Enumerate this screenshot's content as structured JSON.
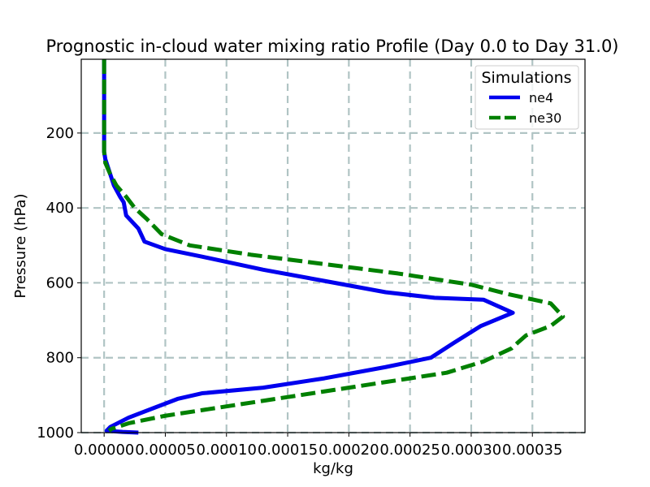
{
  "chart_data": {
    "type": "line",
    "title": "Prognostic in-cloud water mixing ratio Profile (Day 0.0 to Day 31.0)",
    "xlabel": "kg/kg",
    "ylabel": "Pressure (hPa)",
    "xlim": [
      -1.87e-05,
      0.000393
    ],
    "ylim": [
      1000,
      3
    ],
    "y_inverted": true,
    "grid": true,
    "xticks": [
      0,
      5e-05,
      0.0001,
      0.00015,
      0.0002,
      0.00025,
      0.0003,
      0.00035
    ],
    "xtick_labels": [
      "0.00000",
      "0.00005",
      "0.00010",
      "0.00015",
      "0.00020",
      "0.00025",
      "0.00030",
      "0.00035"
    ],
    "yticks": [
      200,
      400,
      600,
      800,
      1000
    ],
    "ytick_labels": [
      "200",
      "400",
      "600",
      "800",
      "1000"
    ],
    "legend": {
      "title": "Simulations",
      "position": "upper right"
    },
    "series": [
      {
        "name": "ne4",
        "color": "#0000ee",
        "style": "solid",
        "x": [
          0,
          0,
          0,
          0,
          1e-06,
          3e-06,
          5e-06,
          8e-06,
          1.3e-05,
          1.6e-05,
          1.8e-05,
          2.8e-05,
          3.3e-05,
          5e-05,
          8e-05,
          0.00013,
          0.00018,
          0.00023,
          0.00027,
          0.00031,
          0.000334,
          0.000308,
          0.000286,
          0.000267,
          0.00023,
          0.00018,
          0.00013,
          8e-05,
          6e-05,
          4e-05,
          2e-05,
          5e-06,
          2e-06,
          1.5e-05,
          2.8e-05
        ],
        "y": [
          0,
          100,
          200,
          250,
          270,
          290,
          310,
          340,
          370,
          385,
          420,
          455,
          490,
          510,
          530,
          565,
          595,
          625,
          640,
          645,
          680,
          715,
          760,
          800,
          825,
          855,
          880,
          895,
          910,
          935,
          960,
          985,
          995,
          998,
          1000
        ]
      },
      {
        "name": "ne30",
        "color": "#008000",
        "style": "dashed",
        "x": [
          0,
          0,
          0,
          0,
          1e-06,
          5e-06,
          1e-05,
          1.8e-05,
          2.5e-05,
          3.5e-05,
          4.7e-05,
          7e-05,
          0.00012,
          0.00018,
          0.00024,
          0.00028,
          0.0003,
          0.00033,
          0.000365,
          0.000375,
          0.000365,
          0.000345,
          0.000338,
          0.000333,
          0.00031,
          0.00028,
          0.00025,
          0.0002,
          0.00015,
          0.0001,
          5e-05,
          2e-05,
          6e-06,
          4e-06
        ],
        "y": [
          0,
          100,
          200,
          250,
          280,
          310,
          340,
          370,
          400,
          430,
          470,
          500,
          525,
          550,
          575,
          595,
          605,
          630,
          655,
          690,
          715,
          740,
          760,
          775,
          810,
          840,
          855,
          880,
          905,
          930,
          955,
          975,
          990,
          995
        ]
      }
    ]
  }
}
